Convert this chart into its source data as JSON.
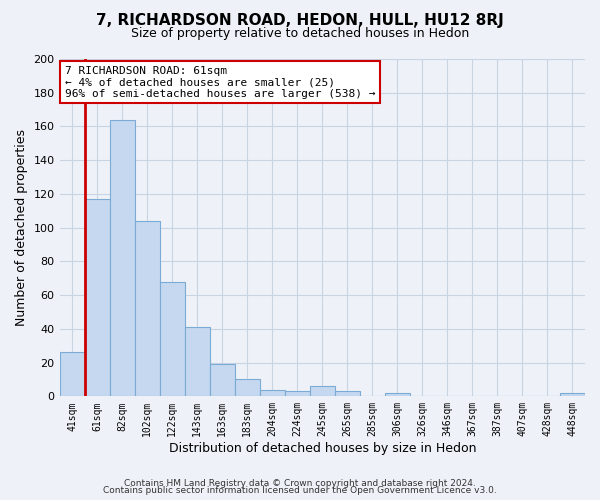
{
  "title": "7, RICHARDSON ROAD, HEDON, HULL, HU12 8RJ",
  "subtitle": "Size of property relative to detached houses in Hedon",
  "xlabel": "Distribution of detached houses by size in Hedon",
  "ylabel": "Number of detached properties",
  "bar_labels": [
    "41sqm",
    "61sqm",
    "82sqm",
    "102sqm",
    "122sqm",
    "143sqm",
    "163sqm",
    "183sqm",
    "204sqm",
    "224sqm",
    "245sqm",
    "265sqm",
    "285sqm",
    "306sqm",
    "326sqm",
    "346sqm",
    "367sqm",
    "387sqm",
    "407sqm",
    "428sqm",
    "448sqm"
  ],
  "bar_values": [
    26,
    117,
    164,
    104,
    68,
    41,
    19,
    10,
    4,
    3,
    6,
    3,
    0,
    2,
    0,
    0,
    0,
    0,
    0,
    0,
    2
  ],
  "bar_color": "#c5d8f0",
  "bar_edge_color": "#7baad4",
  "highlight_edge_color": "#cc0000",
  "vline_bar_index": 1,
  "ylim": [
    0,
    200
  ],
  "yticks": [
    0,
    20,
    40,
    60,
    80,
    100,
    120,
    140,
    160,
    180,
    200
  ],
  "annotation_title": "7 RICHARDSON ROAD: 61sqm",
  "annotation_line1": "← 4% of detached houses are smaller (25)",
  "annotation_line2": "96% of semi-detached houses are larger (538) →",
  "annotation_box_edge": "#cc0000",
  "footer_line1": "Contains HM Land Registry data © Crown copyright and database right 2024.",
  "footer_line2": "Contains public sector information licensed under the Open Government Licence v3.0.",
  "background_color": "#eef2f8",
  "grid_color": "#d0d8e8"
}
